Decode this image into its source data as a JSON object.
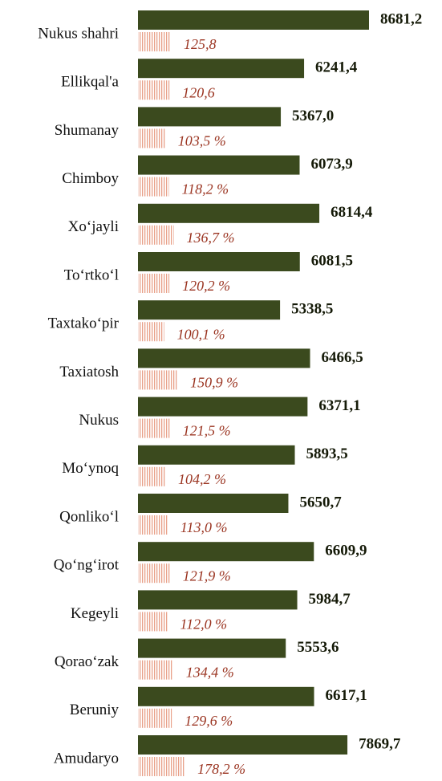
{
  "chart_data": {
    "type": "bar",
    "categories": [
      "Nukus shahri",
      "Ellikqal'a",
      "Shumanay",
      "Chimboy",
      "Xo‘jayli",
      "To‘rtko‘l",
      "Taxtako‘pir",
      "Taxiatosh",
      "Nukus",
      "Mo‘ynoq",
      "Qonliko‘l",
      "Qo‘ng‘irot",
      "Kegeyli",
      "Qorao‘zak",
      "Beruniy",
      "Amudaryo"
    ],
    "series": [
      {
        "color": "#3b4a1e",
        "values": [
          8681.2,
          6241.4,
          5367.0,
          6073.9,
          6814.4,
          6081.5,
          5338.5,
          6466.5,
          6371.1,
          5893.5,
          5650.7,
          6609.9,
          5984.7,
          5553.6,
          6617.1,
          7869.7
        ],
        "value_labels": [
          "8681,2",
          "6241,4",
          "5367,0",
          "6073,9",
          "6814,4",
          "6081,5",
          "5338,5",
          "6466,5",
          "6371,1",
          "5893,5",
          "5650,7",
          "6609,9",
          "5984,7",
          "5553,6",
          "6617,1",
          "7869,7"
        ]
      },
      {
        "color": "#e8a088",
        "values": [
          125.8,
          120.6,
          103.5,
          118.2,
          136.7,
          120.2,
          100.1,
          150.9,
          121.5,
          104.2,
          113.0,
          121.9,
          112.0,
          134.4,
          129.6,
          178.2
        ],
        "value_labels": [
          "125,8",
          "120,6",
          "103,5 %",
          "118,2 %",
          "136,7 %",
          "120,2 %",
          "100,1 %",
          "150,9 %",
          "121,5 %",
          "104,2 %",
          "113,0 %",
          "121,9 %",
          "112,0 %",
          "134,4 %",
          "129,6 %",
          "178,2 %"
        ]
      }
    ]
  }
}
